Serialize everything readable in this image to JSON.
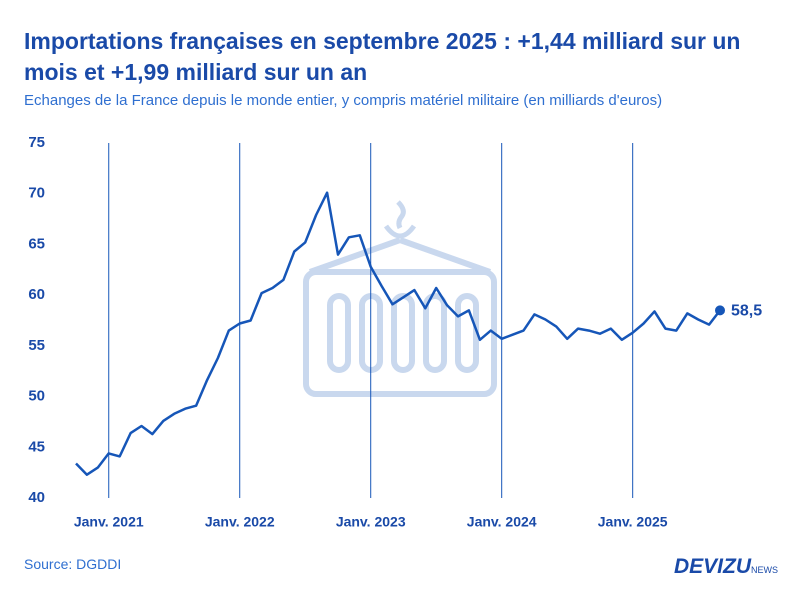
{
  "chart_data": {
    "type": "line",
    "title": "Importations françaises en septembre 2025 : +1,44 milliard sur un mois et +1,99 milliard sur un an",
    "subtitle": "Echanges de la France depuis le monde entier, y compris matériel militaire (en milliards d'euros)",
    "categories": [
      null,
      null,
      null,
      "Janv. 2021",
      null,
      null,
      null,
      null,
      null,
      null,
      null,
      null,
      null,
      null,
      null,
      "Janv. 2022",
      null,
      null,
      null,
      null,
      null,
      null,
      null,
      null,
      null,
      null,
      null,
      "Janv. 2023",
      null,
      null,
      null,
      null,
      null,
      null,
      null,
      null,
      null,
      null,
      null,
      "Janv. 2024",
      null,
      null,
      null,
      null,
      null,
      null,
      null,
      null,
      null,
      null,
      null,
      "Janv. 2025",
      null,
      null,
      null,
      null,
      null,
      null,
      null,
      null
    ],
    "values": [
      43.4,
      42.3,
      43.0,
      44.4,
      44.1,
      46.4,
      47.1,
      46.3,
      47.6,
      48.3,
      48.8,
      49.1,
      51.6,
      53.8,
      56.5,
      57.2,
      57.5,
      60.2,
      60.7,
      61.5,
      64.3,
      65.2,
      67.9,
      70.1,
      64.0,
      65.7,
      65.9,
      62.8,
      60.9,
      59.1,
      59.8,
      60.5,
      58.7,
      60.7,
      59.0,
      57.9,
      58.5,
      55.6,
      56.5,
      55.7,
      56.1,
      56.5,
      58.1,
      57.6,
      56.9,
      55.7,
      56.7,
      56.5,
      56.2,
      56.7,
      55.6,
      56.3,
      57.2,
      58.4,
      56.7,
      56.5,
      58.2,
      57.6,
      57.1,
      58.5
    ],
    "value_labels": [
      null,
      null,
      null,
      null,
      null,
      null,
      null,
      null,
      null,
      null,
      null,
      null,
      null,
      null,
      null,
      null,
      null,
      null,
      null,
      null,
      null,
      null,
      null,
      null,
      null,
      null,
      null,
      null,
      null,
      null,
      null,
      null,
      null,
      null,
      null,
      null,
      null,
      null,
      null,
      null,
      null,
      null,
      null,
      null,
      null,
      null,
      null,
      null,
      null,
      null,
      null,
      null,
      null,
      null,
      null,
      null,
      null,
      null,
      null,
      "58,5"
    ],
    "color": "#1656b8",
    "ylim": [
      40,
      75
    ],
    "yticks": [
      40,
      45,
      50,
      55,
      60,
      65,
      70,
      75
    ],
    "grid": "x"
  },
  "source": "Source: DGDDI",
  "brand": {
    "name": "DEVIZU",
    "suffix": "NEWS"
  }
}
